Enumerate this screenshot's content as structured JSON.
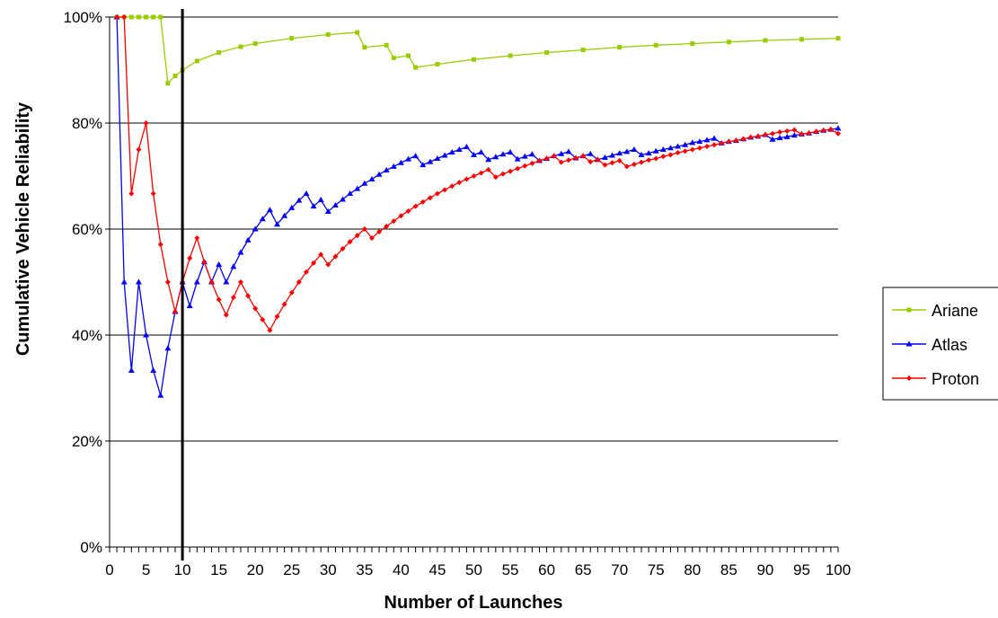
{
  "chart_data": {
    "type": "line",
    "title": "",
    "xlabel": "Number of Launches",
    "ylabel": "Cumulative Vehicle Reliability",
    "xlim": [
      0,
      100
    ],
    "ylim": [
      0,
      1
    ],
    "x_ticks": [
      "0",
      "5",
      "10",
      "15",
      "20",
      "25",
      "30",
      "35",
      "40",
      "45",
      "50",
      "55",
      "60",
      "65",
      "70",
      "75",
      "80",
      "85",
      "90",
      "95",
      "100"
    ],
    "y_ticks": [
      "0%",
      "20%",
      "40%",
      "60%",
      "80%",
      "100%"
    ],
    "grid": "horizontal",
    "legend_position": "right",
    "reference_line_x": 10,
    "series": [
      {
        "name": "Ariane",
        "color": "#99cc00",
        "marker": "square",
        "points": [
          [
            1,
            1.0
          ],
          [
            2,
            1.0
          ],
          [
            3,
            1.0
          ],
          [
            4,
            1.0
          ],
          [
            5,
            1.0
          ],
          [
            6,
            1.0
          ],
          [
            7,
            1.0
          ],
          [
            8,
            0.875
          ],
          [
            9,
            0.889
          ],
          [
            10,
            0.9
          ],
          [
            12,
            0.917
          ],
          [
            15,
            0.933
          ],
          [
            18,
            0.944
          ],
          [
            20,
            0.95
          ],
          [
            25,
            0.96
          ],
          [
            30,
            0.967
          ],
          [
            34,
            0.971
          ],
          [
            35,
            0.943
          ],
          [
            38,
            0.947
          ],
          [
            39,
            0.923
          ],
          [
            41,
            0.927
          ],
          [
            42,
            0.905
          ],
          [
            45,
            0.911
          ],
          [
            50,
            0.92
          ],
          [
            55,
            0.927
          ],
          [
            60,
            0.933
          ],
          [
            65,
            0.938
          ],
          [
            70,
            0.943
          ],
          [
            75,
            0.947
          ],
          [
            80,
            0.95
          ],
          [
            85,
            0.953
          ],
          [
            90,
            0.956
          ],
          [
            95,
            0.958
          ],
          [
            100,
            0.96
          ]
        ]
      },
      {
        "name": "Atlas",
        "color": "#0000ff",
        "marker": "triangle",
        "points": [
          [
            1,
            1.0
          ],
          [
            2,
            0.5
          ],
          [
            3,
            0.333
          ],
          [
            4,
            0.5
          ],
          [
            5,
            0.4
          ],
          [
            6,
            0.333
          ],
          [
            7,
            0.286
          ],
          [
            8,
            0.375
          ],
          [
            9,
            0.444
          ],
          [
            10,
            0.5
          ],
          [
            11,
            0.455
          ],
          [
            12,
            0.5
          ],
          [
            13,
            0.538
          ],
          [
            14,
            0.5
          ],
          [
            15,
            0.533
          ],
          [
            16,
            0.5
          ],
          [
            17,
            0.529
          ],
          [
            18,
            0.556
          ],
          [
            19,
            0.579
          ],
          [
            20,
            0.6
          ],
          [
            21,
            0.619
          ],
          [
            22,
            0.636
          ],
          [
            23,
            0.609
          ],
          [
            24,
            0.625
          ],
          [
            25,
            0.64
          ],
          [
            26,
            0.654
          ],
          [
            27,
            0.667
          ],
          [
            28,
            0.643
          ],
          [
            29,
            0.655
          ],
          [
            30,
            0.633
          ],
          [
            31,
            0.645
          ],
          [
            32,
            0.656
          ],
          [
            33,
            0.667
          ],
          [
            34,
            0.676
          ],
          [
            35,
            0.686
          ],
          [
            36,
            0.694
          ],
          [
            37,
            0.703
          ],
          [
            38,
            0.711
          ],
          [
            39,
            0.718
          ],
          [
            40,
            0.725
          ],
          [
            41,
            0.732
          ],
          [
            42,
            0.738
          ],
          [
            43,
            0.721
          ],
          [
            44,
            0.727
          ],
          [
            45,
            0.733
          ],
          [
            46,
            0.739
          ],
          [
            47,
            0.745
          ],
          [
            48,
            0.75
          ],
          [
            49,
            0.755
          ],
          [
            50,
            0.74
          ],
          [
            51,
            0.745
          ],
          [
            52,
            0.731
          ],
          [
            53,
            0.736
          ],
          [
            54,
            0.741
          ],
          [
            55,
            0.745
          ],
          [
            56,
            0.732
          ],
          [
            57,
            0.737
          ],
          [
            58,
            0.741
          ],
          [
            59,
            0.729
          ],
          [
            60,
            0.733
          ],
          [
            61,
            0.738
          ],
          [
            62,
            0.742
          ],
          [
            63,
            0.746
          ],
          [
            64,
            0.734
          ],
          [
            65,
            0.738
          ],
          [
            66,
            0.742
          ],
          [
            67,
            0.731
          ],
          [
            68,
            0.735
          ],
          [
            69,
            0.739
          ],
          [
            70,
            0.743
          ],
          [
            71,
            0.746
          ],
          [
            72,
            0.75
          ],
          [
            73,
            0.74
          ],
          [
            74,
            0.743
          ],
          [
            75,
            0.747
          ],
          [
            76,
            0.75
          ],
          [
            77,
            0.753
          ],
          [
            78,
            0.756
          ],
          [
            79,
            0.759
          ],
          [
            80,
            0.763
          ],
          [
            81,
            0.765
          ],
          [
            82,
            0.768
          ],
          [
            83,
            0.771
          ],
          [
            84,
            0.762
          ],
          [
            85,
            0.765
          ],
          [
            86,
            0.767
          ],
          [
            87,
            0.77
          ],
          [
            88,
            0.773
          ],
          [
            89,
            0.775
          ],
          [
            90,
            0.778
          ],
          [
            91,
            0.769
          ],
          [
            92,
            0.772
          ],
          [
            93,
            0.774
          ],
          [
            94,
            0.777
          ],
          [
            95,
            0.779
          ],
          [
            96,
            0.781
          ],
          [
            97,
            0.784
          ],
          [
            98,
            0.786
          ],
          [
            99,
            0.788
          ],
          [
            100,
            0.79
          ]
        ]
      },
      {
        "name": "Proton",
        "color": "#ff0000",
        "marker": "diamond",
        "points": [
          [
            1,
            1.0
          ],
          [
            2,
            1.0
          ],
          [
            3,
            0.667
          ],
          [
            4,
            0.75
          ],
          [
            5,
            0.8
          ],
          [
            6,
            0.667
          ],
          [
            7,
            0.571
          ],
          [
            8,
            0.5
          ],
          [
            9,
            0.444
          ],
          [
            10,
            0.5
          ],
          [
            11,
            0.545
          ],
          [
            12,
            0.583
          ],
          [
            13,
            0.538
          ],
          [
            14,
            0.5
          ],
          [
            15,
            0.467
          ],
          [
            16,
            0.438
          ],
          [
            17,
            0.471
          ],
          [
            18,
            0.5
          ],
          [
            19,
            0.474
          ],
          [
            20,
            0.45
          ],
          [
            21,
            0.429
          ],
          [
            22,
            0.409
          ],
          [
            23,
            0.435
          ],
          [
            24,
            0.458
          ],
          [
            25,
            0.48
          ],
          [
            26,
            0.5
          ],
          [
            27,
            0.519
          ],
          [
            28,
            0.536
          ],
          [
            29,
            0.552
          ],
          [
            30,
            0.533
          ],
          [
            31,
            0.548
          ],
          [
            32,
            0.563
          ],
          [
            33,
            0.576
          ],
          [
            34,
            0.588
          ],
          [
            35,
            0.6
          ],
          [
            36,
            0.583
          ],
          [
            37,
            0.595
          ],
          [
            38,
            0.605
          ],
          [
            39,
            0.615
          ],
          [
            40,
            0.625
          ],
          [
            41,
            0.634
          ],
          [
            42,
            0.643
          ],
          [
            43,
            0.651
          ],
          [
            44,
            0.659
          ],
          [
            45,
            0.667
          ],
          [
            46,
            0.674
          ],
          [
            47,
            0.681
          ],
          [
            48,
            0.688
          ],
          [
            49,
            0.694
          ],
          [
            50,
            0.7
          ],
          [
            51,
            0.706
          ],
          [
            52,
            0.712
          ],
          [
            53,
            0.698
          ],
          [
            54,
            0.704
          ],
          [
            55,
            0.709
          ],
          [
            56,
            0.714
          ],
          [
            57,
            0.719
          ],
          [
            58,
            0.724
          ],
          [
            59,
            0.729
          ],
          [
            60,
            0.733
          ],
          [
            61,
            0.738
          ],
          [
            62,
            0.726
          ],
          [
            63,
            0.73
          ],
          [
            64,
            0.734
          ],
          [
            65,
            0.738
          ],
          [
            66,
            0.727
          ],
          [
            67,
            0.731
          ],
          [
            68,
            0.721
          ],
          [
            69,
            0.725
          ],
          [
            70,
            0.729
          ],
          [
            71,
            0.718
          ],
          [
            72,
            0.722
          ],
          [
            73,
            0.726
          ],
          [
            74,
            0.73
          ],
          [
            75,
            0.733
          ],
          [
            76,
            0.737
          ],
          [
            77,
            0.74
          ],
          [
            78,
            0.744
          ],
          [
            79,
            0.747
          ],
          [
            80,
            0.75
          ],
          [
            81,
            0.753
          ],
          [
            82,
            0.756
          ],
          [
            83,
            0.759
          ],
          [
            84,
            0.762
          ],
          [
            85,
            0.765
          ],
          [
            86,
            0.767
          ],
          [
            87,
            0.77
          ],
          [
            88,
            0.773
          ],
          [
            89,
            0.775
          ],
          [
            90,
            0.778
          ],
          [
            91,
            0.78
          ],
          [
            92,
            0.783
          ],
          [
            93,
            0.785
          ],
          [
            94,
            0.787
          ],
          [
            95,
            0.779
          ],
          [
            96,
            0.781
          ],
          [
            97,
            0.784
          ],
          [
            98,
            0.786
          ],
          [
            99,
            0.788
          ],
          [
            100,
            0.78
          ]
        ]
      }
    ]
  }
}
